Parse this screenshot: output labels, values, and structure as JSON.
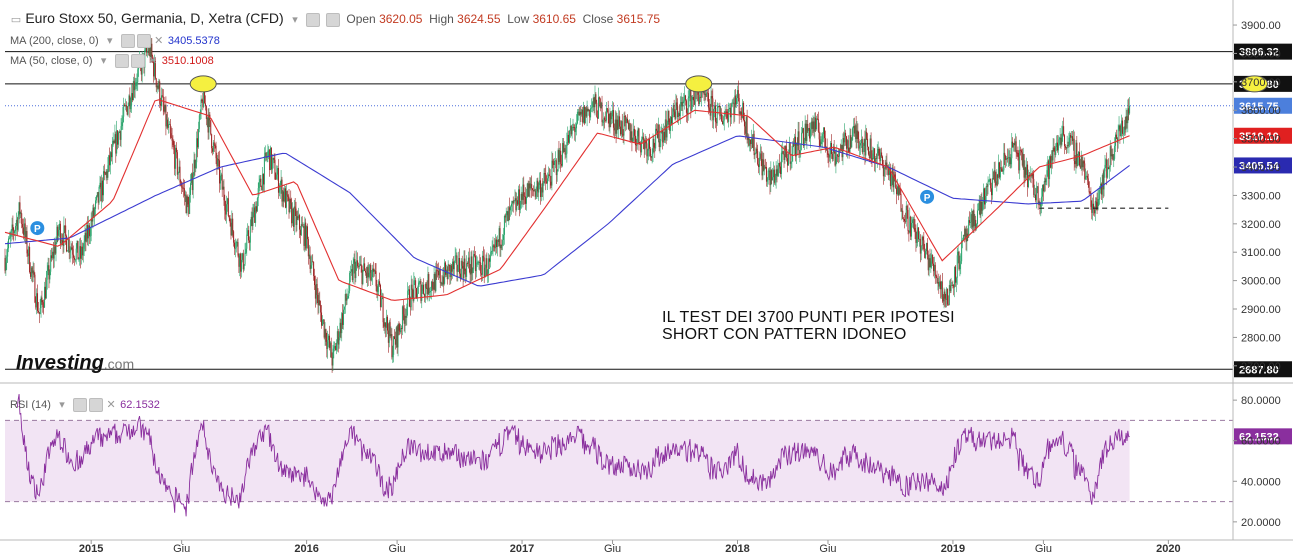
{
  "header": {
    "title": "Euro Stoxx 50, Germania, D, Xetra (CFD)",
    "open_label": "Open",
    "open": "3620.05",
    "high_label": "High",
    "high": "3624.55",
    "low_label": "Low",
    "low": "3610.65",
    "close_label": "Close",
    "close": "3615.75"
  },
  "indicators": {
    "ma200_label": "MA (200, close, 0)",
    "ma200_value": "3405.5378",
    "ma50_label": "MA (50, close, 0)",
    "ma50_value": "3510.1008",
    "rsi_label": "RSI (14)",
    "rsi_value": "62.1532"
  },
  "annotation": {
    "line1": "IL TEST DEI 3700 PUNTI PER IPOTESI",
    "line2": "SHORT CON PATTERN IDONEO"
  },
  "logo": {
    "main": "Investing",
    "suffix": ".com"
  },
  "colors": {
    "candle_up": "#26a269",
    "candle_down": "#9c2020",
    "ma200": "#3b3bd1",
    "ma50": "#e23030",
    "rsi": "#8a2f9e",
    "rsi_band": "#f2e4f4",
    "marker": "#2b8fe0",
    "ellipse": "#f5f040"
  },
  "chart_data": [
    {
      "type": "candlestick",
      "title": "Euro Stoxx 50, Germania, D, Xetra (CFD)",
      "y_range": [
        2650,
        3960
      ],
      "y_ticks": [
        2700,
        2800,
        2900,
        3000,
        3100,
        3200,
        3300,
        3400,
        3500,
        3600,
        3700,
        3800,
        3900
      ],
      "y_tick_labels": [
        "2700.00",
        "2800.00",
        "2900.00",
        "3000.00",
        "3100.00",
        "3200.00",
        "3300.00",
        "3400.00",
        "3500.00",
        "3600.00",
        "3700.00",
        "3800.00",
        "3900.00"
      ],
      "x_range": [
        2014.6,
        2020.3
      ],
      "x_ticks": [
        2015.0,
        2015.42,
        2016.0,
        2016.42,
        2017.0,
        2017.42,
        2018.0,
        2018.42,
        2019.0,
        2019.42,
        2020.0,
        2020.42
      ],
      "x_tick_labels": [
        "2015",
        "Giu",
        "2016",
        "Giu",
        "2017",
        "Giu",
        "2018",
        "Giu",
        "2019",
        "Giu",
        "2020",
        "Giu"
      ],
      "price_path": [
        [
          2014.6,
          3080
        ],
        [
          2014.67,
          3250
        ],
        [
          2014.76,
          2880
        ],
        [
          2014.85,
          3180
        ],
        [
          2014.95,
          3080
        ],
        [
          2015.1,
          3450
        ],
        [
          2015.2,
          3700
        ],
        [
          2015.27,
          3820
        ],
        [
          2015.35,
          3550
        ],
        [
          2015.45,
          3250
        ],
        [
          2015.52,
          3650
        ],
        [
          2015.6,
          3350
        ],
        [
          2015.7,
          3050
        ],
        [
          2015.82,
          3450
        ],
        [
          2015.92,
          3250
        ],
        [
          2016.0,
          3150
        ],
        [
          2016.06,
          2900
        ],
        [
          2016.12,
          2720
        ],
        [
          2016.22,
          3050
        ],
        [
          2016.32,
          3000
        ],
        [
          2016.4,
          2760
        ],
        [
          2016.48,
          2950
        ],
        [
          2016.6,
          3000
        ],
        [
          2016.7,
          3050
        ],
        [
          2016.85,
          3050
        ],
        [
          2016.92,
          3200
        ],
        [
          2017.0,
          3300
        ],
        [
          2017.12,
          3350
        ],
        [
          2017.25,
          3550
        ],
        [
          2017.33,
          3620
        ],
        [
          2017.45,
          3550
        ],
        [
          2017.6,
          3470
        ],
        [
          2017.72,
          3600
        ],
        [
          2017.82,
          3660
        ],
        [
          2017.92,
          3570
        ],
        [
          2018.0,
          3640
        ],
        [
          2018.06,
          3500
        ],
        [
          2018.15,
          3350
        ],
        [
          2018.22,
          3430
        ],
        [
          2018.35,
          3550
        ],
        [
          2018.45,
          3440
        ],
        [
          2018.55,
          3520
        ],
        [
          2018.7,
          3390
        ],
        [
          2018.8,
          3200
        ],
        [
          2018.92,
          3030
        ],
        [
          2018.97,
          2930
        ],
        [
          2019.05,
          3130
        ],
        [
          2019.15,
          3300
        ],
        [
          2019.28,
          3470
        ],
        [
          2019.4,
          3290
        ],
        [
          2019.5,
          3520
        ],
        [
          2019.6,
          3420
        ],
        [
          2019.65,
          3250
        ],
        [
          2019.75,
          3480
        ],
        [
          2019.8,
          3560
        ],
        [
          2019.82,
          3615.75
        ]
      ],
      "ma200_path": [
        [
          2014.6,
          3130
        ],
        [
          2014.9,
          3150
        ],
        [
          2015.3,
          3300
        ],
        [
          2015.6,
          3400
        ],
        [
          2015.9,
          3450
        ],
        [
          2016.2,
          3310
        ],
        [
          2016.5,
          3080
        ],
        [
          2016.8,
          2980
        ],
        [
          2017.1,
          3020
        ],
        [
          2017.4,
          3200
        ],
        [
          2017.7,
          3410
        ],
        [
          2018.0,
          3510
        ],
        [
          2018.4,
          3470
        ],
        [
          2018.7,
          3400
        ],
        [
          2019.0,
          3290
        ],
        [
          2019.35,
          3270
        ],
        [
          2019.6,
          3280
        ],
        [
          2019.82,
          3405.54
        ]
      ],
      "ma50_path": [
        [
          2014.6,
          3170
        ],
        [
          2014.85,
          3120
        ],
        [
          2015.1,
          3280
        ],
        [
          2015.3,
          3640
        ],
        [
          2015.55,
          3580
        ],
        [
          2015.75,
          3300
        ],
        [
          2015.95,
          3350
        ],
        [
          2016.15,
          3000
        ],
        [
          2016.4,
          2930
        ],
        [
          2016.65,
          2950
        ],
        [
          2016.9,
          3040
        ],
        [
          2017.1,
          3250
        ],
        [
          2017.35,
          3520
        ],
        [
          2017.55,
          3480
        ],
        [
          2017.8,
          3600
        ],
        [
          2018.05,
          3580
        ],
        [
          2018.25,
          3440
        ],
        [
          2018.45,
          3470
        ],
        [
          2018.7,
          3400
        ],
        [
          2018.95,
          3070
        ],
        [
          2019.2,
          3250
        ],
        [
          2019.4,
          3400
        ],
        [
          2019.6,
          3440
        ],
        [
          2019.82,
          3510.1
        ]
      ],
      "horizontal_levels": [
        {
          "value": 3806.32,
          "label": "3806.32",
          "style": "solid"
        },
        {
          "value": 3692.8,
          "label": "3692.80",
          "style": "solid"
        },
        {
          "value": 3615.75,
          "label": "3615.75",
          "style": "dotted"
        },
        {
          "value": 2687.8,
          "label": "2687.80",
          "style": "solid"
        }
      ],
      "price_tags": [
        {
          "value": 3615.75,
          "label": "3615.75",
          "color": "#4c7fdc"
        },
        {
          "value": 3510.1,
          "label": "3510.10",
          "color": "#e02020"
        },
        {
          "value": 3405.54,
          "label": "3405.54",
          "color": "#2a2ab0"
        }
      ],
      "support_line": {
        "x": [
          2019.4,
          2020.0
        ],
        "value": 3255
      },
      "ellipses": [
        {
          "x": 2015.52,
          "value": 3692.8
        },
        {
          "x": 2017.82,
          "value": 3692.8
        },
        {
          "x": 2020.4,
          "value": 3692.8
        }
      ],
      "markers": [
        {
          "x": 2014.75,
          "value": 3185,
          "label": "P"
        },
        {
          "x": 2018.88,
          "value": 3295,
          "label": "P"
        }
      ]
    },
    {
      "type": "line",
      "title": "RSI (14)",
      "y_range": [
        15,
        85
      ],
      "y_ticks": [
        20,
        40,
        60,
        80
      ],
      "y_tick_labels": [
        "20.0000",
        "40.0000",
        "60.0000",
        "80.0000"
      ],
      "bands": [
        30,
        70
      ],
      "last_value": 62.1532,
      "last_label": "62.1532"
    }
  ]
}
